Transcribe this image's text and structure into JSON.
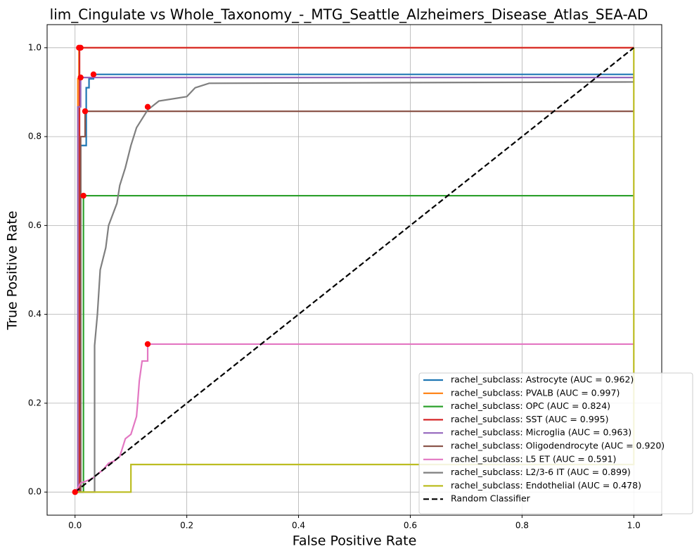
{
  "chart_data": {
    "type": "line",
    "title": "lim_Cingulate vs Whole_Taxonomy_-_MTG_Seattle_Alzheimers_Disease_Atlas_SEA-AD",
    "x_label": "False Positive Rate",
    "y_label": "True Positive Rate",
    "xlim": [
      -0.05,
      1.05
    ],
    "ylim": [
      -0.052,
      1.052
    ],
    "xticks": [
      {
        "value": 0,
        "label": "0.0"
      },
      0.2,
      0.4,
      0.6,
      0.8,
      {
        "value": 1,
        "label": "1.0"
      }
    ],
    "yticks": [
      {
        "value": 0,
        "label": "0.0"
      },
      0.2,
      0.4,
      0.6,
      0.8,
      {
        "value": 1,
        "label": "1.0"
      }
    ],
    "grid": true,
    "legend": "lower right",
    "series": [
      {
        "name": "rachel_subclass: Astrocyte (AUC = 0.962)",
        "color": "#1f77b4",
        "x": [
          0,
          0.01,
          0.01,
          0.02,
          0.02,
          0.025,
          0.025,
          0.033,
          0.033,
          1
        ],
        "values": [
          0,
          0,
          0.78,
          0.78,
          0.91,
          0.91,
          0.93,
          0.93,
          0.94,
          0.94
        ]
      },
      {
        "name": "rachel_subclass: PVALB (AUC = 0.997)",
        "color": "#ff7f0e",
        "x": [
          0,
          0.005,
          0.005,
          0.007,
          0.007,
          1
        ],
        "values": [
          0,
          0,
          0.93,
          0.93,
          1,
          1
        ]
      },
      {
        "name": "rachel_subclass: OPC (AUC = 0.824)",
        "color": "#2ca02c",
        "x": [
          0,
          0.015,
          0.015,
          1
        ],
        "values": [
          0,
          0,
          0.667,
          0.667
        ]
      },
      {
        "name": "rachel_subclass: SST (AUC = 0.995)",
        "color": "#d62728",
        "x": [
          0,
          0.008,
          0.008,
          1
        ],
        "values": [
          0,
          0,
          1,
          1
        ]
      },
      {
        "name": "rachel_subclass: Microglia (AUC = 0.963)",
        "color": "#9467bd",
        "x": [
          0,
          0.005,
          0.005,
          0.01,
          0.01,
          1
        ],
        "values": [
          0,
          0,
          0.867,
          0.867,
          0.933,
          0.933
        ]
      },
      {
        "name": "rachel_subclass: Oligodendrocyte (AUC = 0.920)",
        "color": "#8c564b",
        "x": [
          0,
          0.01,
          0.01,
          0.018,
          0.018,
          1
        ],
        "values": [
          0,
          0,
          0.8,
          0.8,
          0.857,
          0.857
        ]
      },
      {
        "name": "rachel_subclass: L5 ET (AUC = 0.591)",
        "color": "#e377c2",
        "x": [
          0,
          0.005,
          0.01,
          0.02,
          0.03,
          0.04,
          0.05,
          0.06,
          0.07,
          0.08,
          0.085,
          0.09,
          0.1,
          0.105,
          0.11,
          0.112,
          0.115,
          0.12,
          0.13,
          0.13,
          1
        ],
        "values": [
          0,
          0.01,
          0.02,
          0.025,
          0.03,
          0.04,
          0.05,
          0.065,
          0.07,
          0.08,
          0.1,
          0.12,
          0.13,
          0.15,
          0.17,
          0.2,
          0.25,
          0.295,
          0.295,
          0.333,
          0.333
        ]
      },
      {
        "name": "rachel_subclass: L2/3-6 IT (AUC = 0.899)",
        "color": "#7f7f7f",
        "x": [
          0,
          0.035,
          0.035,
          0.04,
          0.045,
          0.055,
          0.06,
          0.075,
          0.08,
          0.09,
          0.1,
          0.105,
          0.11,
          0.12,
          0.13,
          0.14,
          0.15,
          0.2,
          0.215,
          0.24,
          1
        ],
        "values": [
          0,
          0,
          0.33,
          0.4,
          0.5,
          0.55,
          0.6,
          0.65,
          0.69,
          0.73,
          0.78,
          0.8,
          0.82,
          0.84,
          0.86,
          0.87,
          0.88,
          0.89,
          0.91,
          0.92,
          0.923
        ]
      },
      {
        "name": "rachel_subclass: Endothelial (AUC = 0.478)",
        "color": "#bcbd22",
        "x": [
          0,
          0.1,
          0.1,
          1,
          1
        ],
        "values": [
          0,
          0,
          0.062,
          0.062,
          1
        ]
      },
      {
        "name": "Random Classifier",
        "color": "#000000",
        "dash": true,
        "x": [
          0,
          1
        ],
        "values": [
          0,
          1
        ]
      }
    ],
    "threshold_points": {
      "color": "#ff0000",
      "x": [
        0.033,
        0.007,
        0.015,
        0.01,
        0.01,
        0.018,
        0.13,
        0.13,
        0
      ],
      "values": [
        0.94,
        1,
        0.667,
        1,
        0.933,
        0.857,
        0.333,
        0.867,
        0
      ]
    }
  }
}
